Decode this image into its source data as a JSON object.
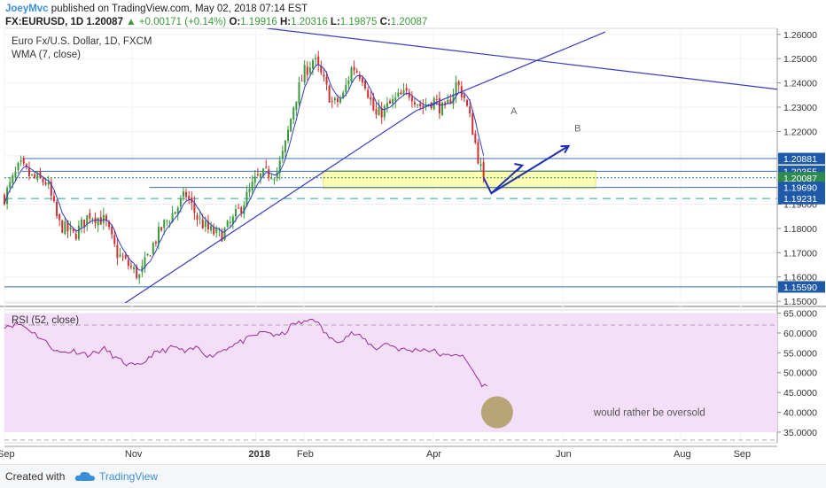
{
  "header": {
    "author": "JoeyMvc",
    "published": "published on TradingView.com, May 02, 2018 07:14 EST",
    "symbol": "FX:EURUSD, 1D",
    "last": "1.20087",
    "change": "+0.00171 (+0.14%)",
    "open_label": "O:",
    "open": "1.19916",
    "high_label": "H:",
    "high": "1.20316",
    "low_label": "L:",
    "low": "1.19875",
    "close_label": "C:",
    "close": "1.20087"
  },
  "footer": {
    "created_with": "Created with",
    "brand": "TradingView"
  },
  "colors": {
    "up": "#3c9a3c",
    "down": "#d03030",
    "wma": "#3040c0",
    "trend": "#3c3cc0",
    "level": "#3a6fb5",
    "dashed": "#5fbfbf",
    "zone": "#ffff99",
    "rsi": "#9c2a9c",
    "rsi_band": "#f3dff8",
    "arrow": "#1f2fb0",
    "ellipse": "#a08a40",
    "tag": "#1f5aa8"
  },
  "chart_data": [
    {
      "type": "candlestick",
      "title": "Euro Fx/U.S. Dollar, 1D, FXCM",
      "indicator_label": "WMA (7, close)",
      "ylim": [
        1.1493,
        1.2625
      ],
      "y_ticks": [
        "1.26000",
        "1.25000",
        "1.24000",
        "1.23000",
        "1.22000",
        "1.21000",
        "1.20000",
        "1.19000",
        "1.18000",
        "1.17000",
        "1.16000",
        "1.15000"
      ],
      "x_ticks": [
        "Sep",
        "Nov",
        "2018",
        "Feb",
        "Apr",
        "Jun",
        "Aug",
        "Sep"
      ],
      "x_tick_days": [
        0,
        66,
        130,
        155,
        222,
        289,
        350,
        381
      ],
      "x_range_days": [
        0,
        400
      ],
      "last_bar_day": 248,
      "bars": 175,
      "anchors": [
        [
          0,
          1.193
        ],
        [
          8,
          1.206
        ],
        [
          14,
          1.201
        ],
        [
          22,
          1.199
        ],
        [
          28,
          1.182
        ],
        [
          36,
          1.177
        ],
        [
          44,
          1.186
        ],
        [
          52,
          1.183
        ],
        [
          58,
          1.17
        ],
        [
          64,
          1.165
        ],
        [
          70,
          1.16
        ],
        [
          76,
          1.172
        ],
        [
          82,
          1.181
        ],
        [
          88,
          1.187
        ],
        [
          94,
          1.194
        ],
        [
          100,
          1.184
        ],
        [
          106,
          1.179
        ],
        [
          112,
          1.177
        ],
        [
          118,
          1.183
        ],
        [
          124,
          1.191
        ],
        [
          130,
          1.2
        ],
        [
          136,
          1.203
        ],
        [
          141,
          1.203
        ],
        [
          145,
          1.213
        ],
        [
          150,
          1.232
        ],
        [
          155,
          1.244
        ],
        [
          160,
          1.25
        ],
        [
          165,
          1.241
        ],
        [
          170,
          1.231
        ],
        [
          175,
          1.234
        ],
        [
          180,
          1.247
        ],
        [
          186,
          1.242
        ],
        [
          192,
          1.226
        ],
        [
          198,
          1.23
        ],
        [
          204,
          1.234
        ],
        [
          210,
          1.236
        ],
        [
          216,
          1.23
        ],
        [
          222,
          1.233
        ],
        [
          228,
          1.228
        ],
        [
          234,
          1.24
        ],
        [
          238,
          1.234
        ],
        [
          242,
          1.222
        ],
        [
          246,
          1.206
        ],
        [
          248,
          1.2009
        ]
      ],
      "levels": [
        {
          "value": 1.20881,
          "label": "1.20881",
          "day_start": 9,
          "tag": true
        },
        {
          "value": 1.20355,
          "label": "1.20355",
          "day_start": 9,
          "tag": true
        },
        {
          "value": 1.20087,
          "label": "1.20087",
          "day_start": 0,
          "tag": true,
          "dotted": true
        },
        {
          "value": 1.1969,
          "label": "1.19690",
          "day_start": 75,
          "tag": true
        },
        {
          "value": 1.19231,
          "label": "1.19231",
          "day_start": 0,
          "tag": true,
          "dashed": true
        },
        {
          "value": 1.1559,
          "label": "1.15590",
          "day_start": 0,
          "tag": true
        }
      ],
      "zone": {
        "day_start": 165,
        "day_end": 306,
        "y_low": 1.1965,
        "y_high": 1.2039
      },
      "trendlines": [
        {
          "points": [
            [
              62,
              1.149
            ],
            [
              213,
              1.2285
            ],
            [
              311,
              1.261
            ]
          ]
        },
        {
          "points": [
            [
              136,
              1.2625
            ],
            [
              400,
              1.2374
            ]
          ]
        }
      ],
      "projection": [
        [
          248,
          1.2009
        ],
        [
          252,
          1.1945
        ],
        [
          268,
          1.206
        ],
        [
          276,
          1.203
        ],
        [
          292,
          1.214
        ],
        [
          300,
          1.2167
        ]
      ],
      "annotations": [
        {
          "text": "A",
          "day": 262,
          "y": 1.227
        },
        {
          "text": "B",
          "day": 295,
          "y": 1.22
        }
      ]
    },
    {
      "type": "line",
      "title": "RSI (52, close)",
      "ylim": [
        32.3,
        65.8
      ],
      "y_ticks": [
        "65.0000",
        "60.0000",
        "55.0000",
        "50.0000",
        "45.0000",
        "40.0000",
        "35.0000"
      ],
      "band": [
        35,
        65
      ],
      "dashed_levels": [
        62.0,
        33.0
      ],
      "anchors": [
        [
          0,
          61.8
        ],
        [
          8,
          62.3
        ],
        [
          14,
          60.5
        ],
        [
          22,
          57.5
        ],
        [
          28,
          55.0
        ],
        [
          36,
          55.5
        ],
        [
          44,
          54.5
        ],
        [
          52,
          56.0
        ],
        [
          58,
          53.5
        ],
        [
          64,
          52.0
        ],
        [
          70,
          51.5
        ],
        [
          76,
          54.5
        ],
        [
          82,
          55.5
        ],
        [
          88,
          56.5
        ],
        [
          94,
          55.0
        ],
        [
          100,
          56.5
        ],
        [
          106,
          54.0
        ],
        [
          112,
          55.5
        ],
        [
          118,
          57.0
        ],
        [
          124,
          58.0
        ],
        [
          130,
          59.5
        ],
        [
          136,
          60.5
        ],
        [
          141,
          59.0
        ],
        [
          145,
          60.0
        ],
        [
          150,
          62.5
        ],
        [
          155,
          62.5
        ],
        [
          160,
          64.0
        ],
        [
          165,
          60.5
        ],
        [
          170,
          58.0
        ],
        [
          175,
          58.5
        ],
        [
          180,
          60.0
        ],
        [
          186,
          58.5
        ],
        [
          192,
          56.0
        ],
        [
          198,
          57.5
        ],
        [
          204,
          56.0
        ],
        [
          210,
          55.5
        ],
        [
          216,
          56.0
        ],
        [
          222,
          55.5
        ],
        [
          228,
          54.0
        ],
        [
          234,
          55.0
        ],
        [
          238,
          53.5
        ],
        [
          242,
          51.0
        ],
        [
          246,
          47.5
        ],
        [
          250,
          46.2
        ]
      ],
      "annotation": {
        "text": "would rather be oversold",
        "day": 305,
        "y": 40.0
      },
      "ellipse": {
        "day": 255,
        "y": 40.0
      }
    }
  ]
}
